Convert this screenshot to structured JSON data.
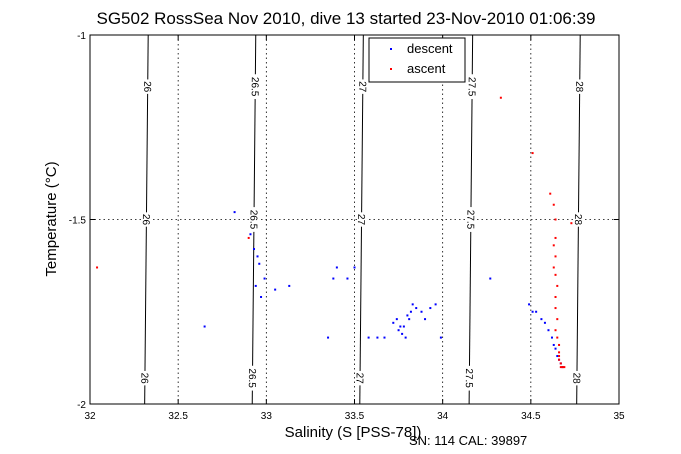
{
  "chart_data": {
    "type": "scatter",
    "title": "SG502 RossSea Nov 2010, dive 13 started 23-Nov-2010 01:06:39",
    "xlabel": "Salinity (S [PSS-78])",
    "ylabel": "Temperature (°C)",
    "footer": "SN: 114  CAL: 39897",
    "xlim": [
      32,
      35
    ],
    "ylim": [
      -2,
      -1
    ],
    "xticks": [
      32,
      32.5,
      33,
      33.5,
      34,
      34.5,
      35
    ],
    "xtick_labels": [
      "32",
      "32.5",
      "33",
      "33.5",
      "34",
      "34.5",
      "35"
    ],
    "yticks": [
      -2,
      -1.5,
      -1
    ],
    "ytick_labels": [
      "-2",
      "-1.5",
      "-1"
    ],
    "grid": true,
    "legend": "top-center",
    "isopycnals": [
      {
        "label": "26",
        "x": [
          32.33,
          32.31
        ]
      },
      {
        "label": "26.5",
        "x": [
          32.94,
          32.92
        ]
      },
      {
        "label": "27",
        "x": [
          33.55,
          33.53
        ]
      },
      {
        "label": "27.5",
        "x": [
          34.17,
          34.15
        ]
      },
      {
        "label": "28",
        "x": [
          34.78,
          34.76
        ]
      }
    ],
    "series": [
      {
        "name": "descent",
        "color": "#0000ff",
        "points": [
          [
            32.82,
            -1.48
          ],
          [
            32.91,
            -1.54
          ],
          [
            32.93,
            -1.58
          ],
          [
            32.95,
            -1.6
          ],
          [
            32.96,
            -1.62
          ],
          [
            32.94,
            -1.68
          ],
          [
            32.97,
            -1.71
          ],
          [
            32.99,
            -1.66
          ],
          [
            33.05,
            -1.69
          ],
          [
            33.13,
            -1.68
          ],
          [
            32.65,
            -1.79
          ],
          [
            33.35,
            -1.82
          ],
          [
            33.38,
            -1.66
          ],
          [
            33.4,
            -1.63
          ],
          [
            33.46,
            -1.66
          ],
          [
            33.5,
            -1.63
          ],
          [
            33.58,
            -1.82
          ],
          [
            33.63,
            -1.82
          ],
          [
            33.67,
            -1.82
          ],
          [
            33.72,
            -1.78
          ],
          [
            33.74,
            -1.77
          ],
          [
            33.75,
            -1.8
          ],
          [
            33.76,
            -1.79
          ],
          [
            33.77,
            -1.81
          ],
          [
            33.78,
            -1.79
          ],
          [
            33.79,
            -1.82
          ],
          [
            33.8,
            -1.76
          ],
          [
            33.81,
            -1.77
          ],
          [
            33.82,
            -1.75
          ],
          [
            33.83,
            -1.73
          ],
          [
            33.85,
            -1.74
          ],
          [
            33.88,
            -1.75
          ],
          [
            33.9,
            -1.77
          ],
          [
            33.93,
            -1.74
          ],
          [
            33.96,
            -1.73
          ],
          [
            33.99,
            -1.82
          ],
          [
            34.27,
            -1.66
          ],
          [
            34.49,
            -1.73
          ],
          [
            34.51,
            -1.75
          ],
          [
            34.53,
            -1.75
          ],
          [
            34.56,
            -1.77
          ],
          [
            34.58,
            -1.78
          ],
          [
            34.6,
            -1.8
          ],
          [
            34.62,
            -1.82
          ],
          [
            34.63,
            -1.84
          ],
          [
            34.64,
            -1.85
          ],
          [
            34.65,
            -1.87
          ],
          [
            34.66,
            -1.88
          ],
          [
            34.67,
            -1.89
          ],
          [
            34.68,
            -1.9
          ]
        ]
      },
      {
        "name": "ascent",
        "color": "#ff0000",
        "points": [
          [
            32.04,
            -1.63
          ],
          [
            32.9,
            -1.55
          ],
          [
            34.33,
            -1.17
          ],
          [
            34.51,
            -1.32
          ],
          [
            34.61,
            -1.43
          ],
          [
            34.63,
            -1.46
          ],
          [
            34.64,
            -1.5
          ],
          [
            34.73,
            -1.51
          ],
          [
            34.64,
            -1.55
          ],
          [
            34.63,
            -1.57
          ],
          [
            34.64,
            -1.6
          ],
          [
            34.63,
            -1.63
          ],
          [
            34.64,
            -1.65
          ],
          [
            34.65,
            -1.68
          ],
          [
            34.64,
            -1.71
          ],
          [
            34.64,
            -1.74
          ],
          [
            34.65,
            -1.77
          ],
          [
            34.64,
            -1.8
          ],
          [
            34.65,
            -1.82
          ],
          [
            34.66,
            -1.84
          ],
          [
            34.66,
            -1.86
          ],
          [
            34.66,
            -1.87
          ],
          [
            34.66,
            -1.88
          ],
          [
            34.67,
            -1.89
          ],
          [
            34.67,
            -1.9
          ],
          [
            34.68,
            -1.9
          ],
          [
            34.69,
            -1.9
          ]
        ]
      }
    ]
  }
}
